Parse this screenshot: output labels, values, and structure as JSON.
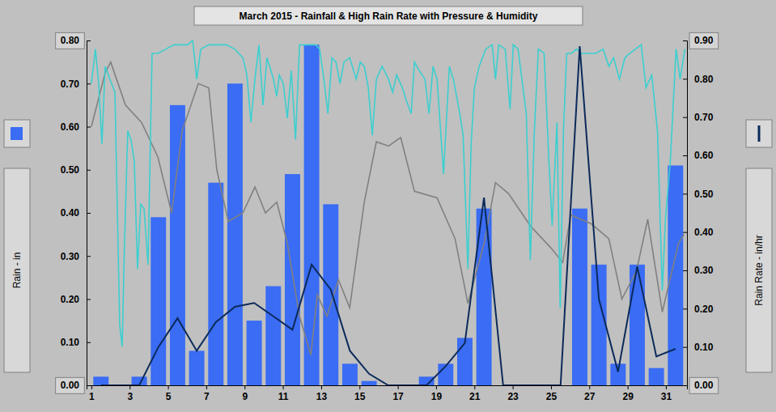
{
  "chart_data": {
    "type": "bar",
    "title": "March 2015 - Rainfall & High Rain Rate with Pressure & Humidity",
    "y_label": "Rain - in",
    "y2_label": "Rain Rate - in/hr",
    "x": [
      1,
      2,
      3,
      4,
      5,
      6,
      7,
      8,
      9,
      10,
      11,
      12,
      13,
      14,
      15,
      16,
      17,
      18,
      19,
      20,
      21,
      22,
      23,
      24,
      25,
      26,
      27,
      28,
      29,
      30,
      31
    ],
    "xlim": [
      0.75,
      32.1
    ],
    "xticks": [
      1,
      3,
      5,
      7,
      9,
      11,
      13,
      15,
      17,
      19,
      21,
      23,
      25,
      27,
      29,
      31
    ],
    "ylim": [
      0,
      0.8
    ],
    "yticks": [
      {
        "value": 0,
        "label": "0.00"
      },
      {
        "value": 0.1,
        "label": "0.10"
      },
      {
        "value": 0.2,
        "label": "0.20"
      },
      {
        "value": 0.3,
        "label": "0.30"
      },
      {
        "value": 0.4,
        "label": "0.40"
      },
      {
        "value": 0.5,
        "label": "0.50"
      },
      {
        "value": 0.6,
        "label": "0.60"
      },
      {
        "value": 0.7,
        "label": "0.70"
      },
      {
        "value": 0.8,
        "label": "0.80"
      }
    ],
    "y2lim": [
      0,
      0.9
    ],
    "y2ticks": [
      {
        "value": 0,
        "label": "0.00"
      },
      {
        "value": 0.1,
        "label": "0.10"
      },
      {
        "value": 0.2,
        "label": "0.20"
      },
      {
        "value": 0.3,
        "label": "0.30"
      },
      {
        "value": 0.4,
        "label": "0.40"
      },
      {
        "value": 0.5,
        "label": "0.50"
      },
      {
        "value": 0.6,
        "label": "0.60"
      },
      {
        "value": 0.7,
        "label": "0.70"
      },
      {
        "value": 0.8,
        "label": "0.80"
      },
      {
        "value": 0.9,
        "label": "0.90"
      }
    ],
    "series": [
      {
        "type": "bar",
        "color": "#3a6cf4",
        "values": [
          0.02,
          0,
          0.02,
          0.39,
          0.65,
          0.08,
          0.47,
          0.7,
          0.15,
          0.23,
          0.49,
          0.79,
          0.42,
          0.05,
          0.01,
          0,
          0,
          0.02,
          0.05,
          0.11,
          0.41,
          0,
          0,
          0,
          0,
          0.41,
          0.28,
          0.05,
          0.28,
          0.04,
          0.51
        ]
      },
      {
        "type": "line",
        "axis": "y2",
        "color": "#0b2a5a",
        "values": [
          0,
          0,
          0,
          0.1,
          0.175,
          0.09,
          0.165,
          0.205,
          0.215,
          0.18,
          0.145,
          0.315,
          0.25,
          0.09,
          0.03,
          0,
          0,
          0,
          0.05,
          0.11,
          0.49,
          0,
          0,
          0,
          0,
          0.885,
          0.225,
          0.035,
          0.31,
          0.075,
          0.095
        ]
      },
      {
        "type": "line",
        "color": "#808080",
        "x": [
          1.0,
          1.72,
          2.01,
          2.78,
          3.62,
          4.47,
          5.19,
          5.74,
          6.58,
          7.13,
          7.55,
          8.15,
          8.91,
          9.54,
          10.09,
          10.68,
          11.23,
          11.87,
          12.46,
          12.8,
          13.3,
          13.9,
          14.49,
          15.25,
          15.88,
          16.52,
          17.15,
          17.87,
          19.05,
          19.99,
          20.66,
          21.51,
          22.1,
          22.78,
          23.92,
          24.97,
          25.61,
          26.03,
          27.09,
          28.02,
          28.7,
          29.46,
          30.05,
          30.81,
          31.66,
          31.95
        ],
        "values": [
          0.6,
          0.725,
          0.75,
          0.65,
          0.61,
          0.53,
          0.4,
          0.59,
          0.7,
          0.69,
          0.5,
          0.38,
          0.4,
          0.46,
          0.4,
          0.425,
          0.33,
          0.16,
          0.07,
          0.21,
          0.16,
          0.245,
          0.18,
          0.425,
          0.565,
          0.555,
          0.575,
          0.45,
          0.435,
          0.34,
          0.19,
          0.33,
          0.47,
          0.445,
          0.37,
          0.32,
          0.285,
          0.395,
          0.375,
          0.34,
          0.2,
          0.265,
          0.385,
          0.17,
          0.33,
          0.35
        ]
      },
      {
        "type": "line",
        "color": "#3ccfcf",
        "x": [
          1.0,
          1.21,
          1.38,
          1.55,
          1.72,
          1.97,
          2.23,
          2.48,
          2.61,
          2.73,
          2.9,
          3.07,
          3.24,
          3.41,
          3.58,
          3.75,
          3.96,
          4.17,
          4.47,
          4.89,
          5.31,
          5.74,
          6.03,
          6.29,
          6.5,
          6.71,
          7.13,
          7.64,
          8.06,
          8.48,
          8.91,
          9.12,
          9.33,
          9.54,
          9.75,
          9.96,
          10.17,
          10.51,
          10.68,
          10.81,
          11.02,
          11.23,
          11.44,
          11.66,
          11.87,
          12.29,
          12.71,
          12.92,
          13.14,
          13.35,
          13.56,
          13.77,
          13.98,
          14.19,
          14.49,
          14.83,
          15.04,
          15.25,
          15.46,
          15.67,
          15.88,
          16.18,
          16.52,
          16.73,
          16.94,
          17.24,
          17.45,
          17.7,
          17.87,
          18.12,
          18.42,
          18.63,
          18.84,
          19.05,
          19.39,
          19.69,
          19.9,
          20.24,
          20.41,
          20.66,
          20.83,
          21.0,
          21.25,
          21.59,
          21.93,
          22.1,
          22.27,
          22.61,
          22.86,
          23.03,
          23.28,
          23.71,
          23.92,
          24.13,
          24.34,
          24.64,
          24.89,
          25.06,
          25.31,
          25.48,
          25.65,
          25.82,
          26.07,
          26.33,
          26.58,
          27.01,
          27.34,
          27.72,
          28.02,
          28.27,
          28.57,
          28.86,
          29.12,
          29.41,
          29.71,
          29.96,
          30.26,
          30.56,
          30.81,
          30.98,
          31.23,
          31.53,
          31.74,
          31.99
        ],
        "values": [
          0.7,
          0.78,
          0.7,
          0.56,
          0.74,
          0.71,
          0.68,
          0.14,
          0.09,
          0.33,
          0.59,
          0.57,
          0.52,
          0.27,
          0.42,
          0.41,
          0.28,
          0.77,
          0.77,
          0.78,
          0.79,
          0.79,
          0.79,
          0.8,
          0.71,
          0.78,
          0.79,
          0.79,
          0.79,
          0.78,
          0.76,
          0.72,
          0.61,
          0.71,
          0.79,
          0.65,
          0.76,
          0.71,
          0.67,
          0.72,
          0.7,
          0.62,
          0.73,
          0.57,
          0.79,
          0.79,
          0.79,
          0.78,
          0.71,
          0.63,
          0.76,
          0.75,
          0.7,
          0.75,
          0.76,
          0.71,
          0.75,
          0.74,
          0.69,
          0.58,
          0.71,
          0.74,
          0.71,
          0.68,
          0.72,
          0.69,
          0.66,
          0.63,
          0.75,
          0.73,
          0.71,
          0.63,
          0.74,
          0.71,
          0.49,
          0.74,
          0.71,
          0.63,
          0.58,
          0.27,
          0.56,
          0.69,
          0.74,
          0.78,
          0.79,
          0.71,
          0.79,
          0.78,
          0.64,
          0.79,
          0.78,
          0.63,
          0.29,
          0.59,
          0.78,
          0.77,
          0.52,
          0.37,
          0.61,
          0.18,
          0.59,
          0.77,
          0.77,
          0.78,
          0.77,
          0.77,
          0.77,
          0.78,
          0.74,
          0.76,
          0.71,
          0.76,
          0.77,
          0.78,
          0.79,
          0.69,
          0.72,
          0.59,
          0.22,
          0.39,
          0.52,
          0.78,
          0.71,
          0.78
        ]
      }
    ]
  }
}
